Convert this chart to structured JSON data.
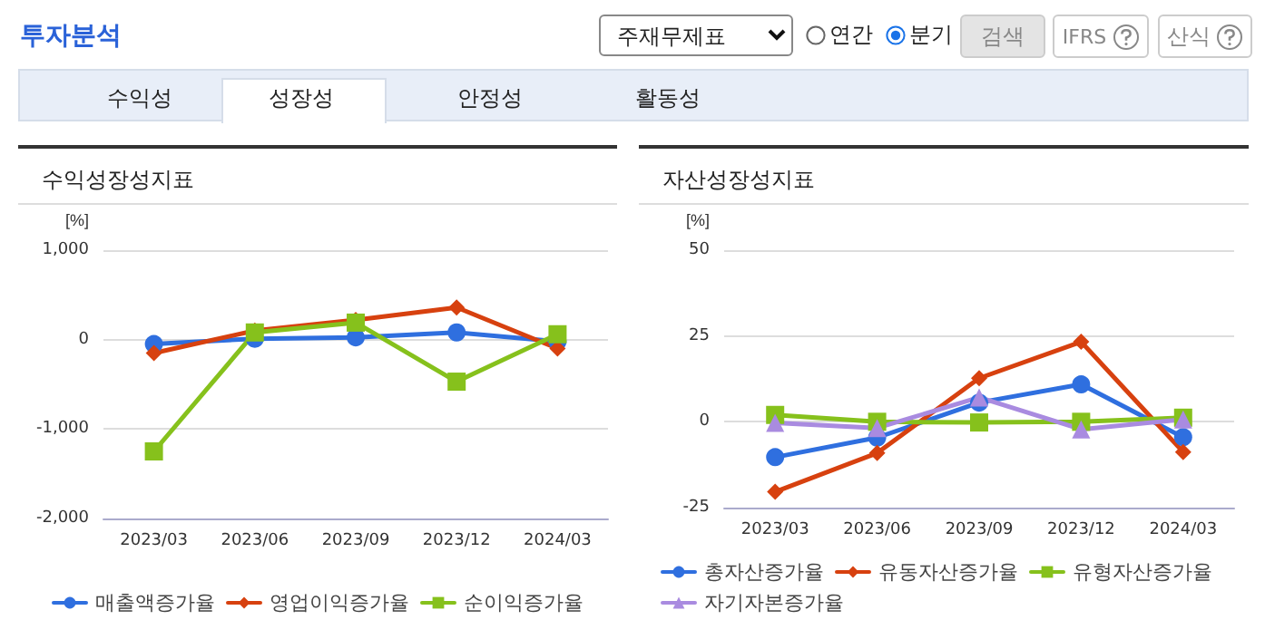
{
  "chart_data": [
    {
      "type": "other",
      "title": "투자분석",
      "annotations": [
        "주재무제표",
        "연간",
        "분기",
        "검색",
        "IFRS",
        "산식",
        "수익성",
        "성장성",
        "안정성",
        "활동성"
      ]
    },
    {
      "type": "line",
      "title": "수익성장성지표",
      "ylabel": "[%]",
      "categories": [
        "2023/03",
        "2023/06",
        "2023/09",
        "2023/12",
        "2024/03"
      ],
      "series": [
        {
          "name": "매출액증가율",
          "color": "#2f6fdf",
          "marker": "circle",
          "values": [
            -50,
            10,
            25,
            80,
            -20
          ]
        },
        {
          "name": "영업이익증가율",
          "color": "#d7410f",
          "marker": "diamond",
          "values": [
            -150,
            100,
            220,
            360,
            -100
          ]
        },
        {
          "name": "순이익증가율",
          "color": "#86c11c",
          "marker": "square",
          "values": [
            -1250,
            80,
            190,
            -470,
            60
          ]
        }
      ],
      "ylim": [
        -2000,
        1000
      ],
      "yticks": [
        {
          "value": -2000,
          "label": "-2,000"
        },
        {
          "value": -1000,
          "label": "-1,000"
        },
        0,
        {
          "value": 1000,
          "label": "1,000"
        }
      ],
      "grid": "y",
      "legend": "bottom",
      "line_style": "solid"
    },
    {
      "type": "line",
      "title": "자산성장성지표",
      "ylabel": "[%]",
      "categories": [
        "2023/03",
        "2023/06",
        "2023/09",
        "2023/12",
        "2024/03"
      ],
      "series": [
        {
          "name": "총자산증가율",
          "color": "#2f6fdf",
          "marker": "circle",
          "values": [
            -10.3,
            -4.6,
            5.6,
            10.9,
            -4.5
          ]
        },
        {
          "name": "유동자산증가율",
          "color": "#d7410f",
          "marker": "diamond",
          "values": [
            -20.4,
            -9.1,
            12.7,
            23.3,
            -8.8
          ]
        },
        {
          "name": "유형자산증가율",
          "color": "#86c11c",
          "marker": "square",
          "values": [
            2.0,
            0,
            -0.2,
            0,
            1.2
          ]
        },
        {
          "name": "자기자본증가율",
          "color": "#a98be0",
          "marker": "triangle",
          "values": [
            -0.3,
            -1.8,
            7.1,
            -2.2,
            0.7
          ]
        }
      ],
      "ylim": [
        -25,
        50
      ],
      "yticks": [
        -25,
        0,
        25,
        50
      ],
      "grid": "y",
      "legend": "bottom",
      "line_style": "solid"
    }
  ]
}
